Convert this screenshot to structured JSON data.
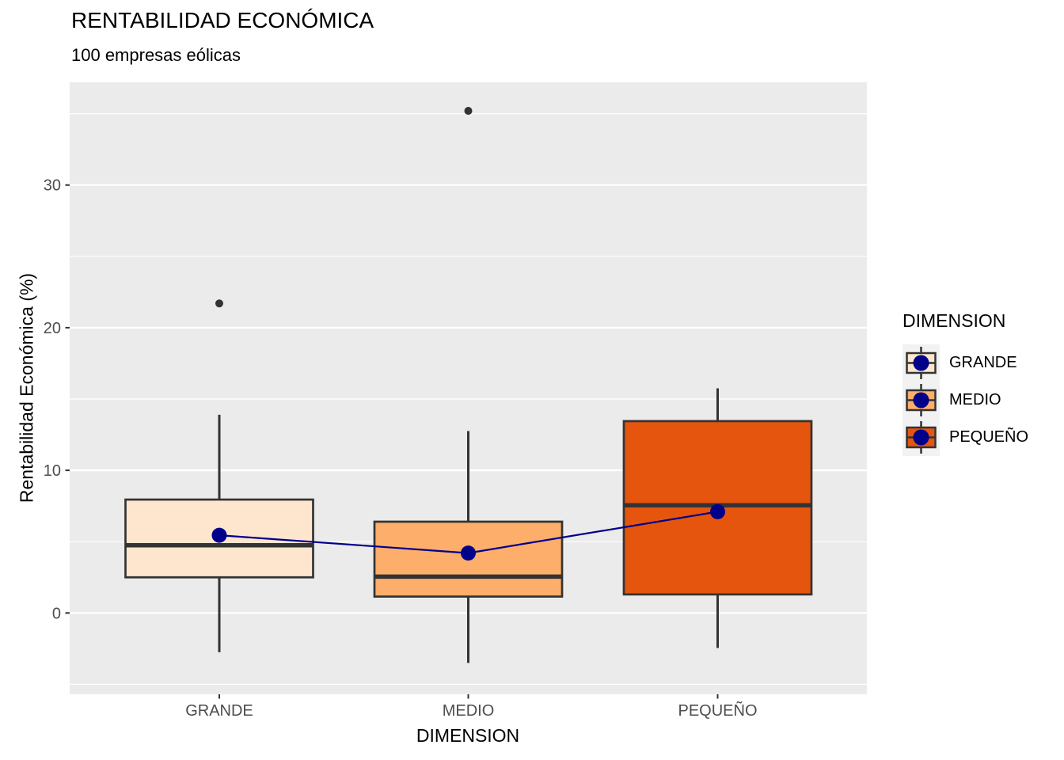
{
  "title": "RENTABILIDAD ECONÓMICA",
  "subtitle": "100 empresas eólicas",
  "chart_data": {
    "type": "boxplot",
    "title": "RENTABILIDAD ECONÓMICA",
    "subtitle": "100 empresas eólicas",
    "xlabel": "DIMENSION",
    "ylabel": "Rentabilidad Económica (%)",
    "categories": [
      "GRANDE",
      "MEDIO",
      "PEQUEÑO"
    ],
    "ylim": [
      -5.7,
      37.2
    ],
    "yticks": [
      0,
      10,
      20,
      30
    ],
    "yticks_minor": [
      -5,
      5,
      15,
      25,
      35
    ],
    "grid": "on",
    "legend_position": "right",
    "series": [
      {
        "id": "grande",
        "label": "GRANDE",
        "fill": "#FEE6CE",
        "whisker_low": -2.75,
        "q1": 2.5,
        "median": 4.75,
        "q3": 7.95,
        "whisker_high": 13.9,
        "mean": 5.45,
        "outliers": [
          21.7
        ]
      },
      {
        "id": "medio",
        "label": "MEDIO",
        "fill": "#FDAE6B",
        "whisker_low": -3.5,
        "q1": 1.15,
        "median": 2.55,
        "q3": 6.4,
        "whisker_high": 12.75,
        "mean": 4.2,
        "outliers": [
          35.2
        ]
      },
      {
        "id": "pequeno",
        "label": "PEQUEÑO",
        "fill": "#E6550D",
        "whisker_low": -2.45,
        "q1": 1.3,
        "median": 7.55,
        "q3": 13.45,
        "whisker_high": 15.75,
        "mean": 7.1,
        "outliers": []
      }
    ],
    "legend": {
      "title": "DIMENSION",
      "entries": [
        {
          "id": "grande",
          "label": "GRANDE",
          "fill": "#FEE6CE"
        },
        {
          "id": "medio",
          "label": "MEDIO",
          "fill": "#FDAE6B"
        },
        {
          "id": "pequeno",
          "label": "PEQUEÑO",
          "fill": "#E6550D"
        }
      ]
    },
    "colors": {
      "panel_bg": "#EBEBEB",
      "gridline": "#FFFFFF",
      "box_stroke": "#333333",
      "outlier": "#333333",
      "mean": "#00008B",
      "tick_text": "#4D4D4D",
      "legend_key_bg": "#F2F2F2",
      "title_text": "#000000"
    }
  }
}
